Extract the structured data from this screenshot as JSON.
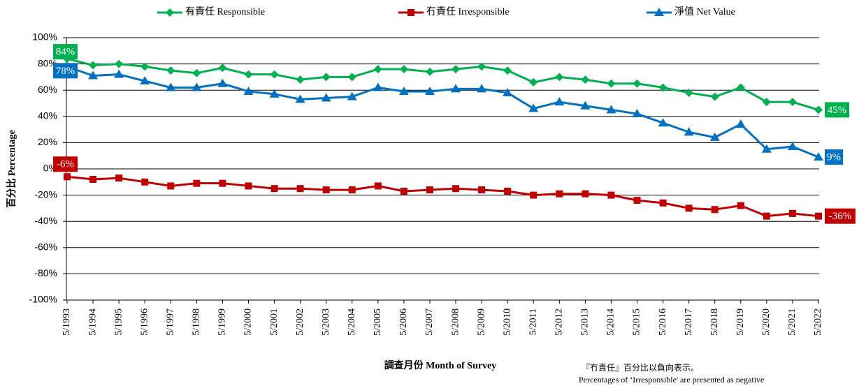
{
  "chart_data": {
    "type": "line",
    "categories": [
      "5/1993",
      "5/1994",
      "5/1995",
      "5/1996",
      "5/1997",
      "5/1998",
      "5/1999",
      "5/2000",
      "5/2001",
      "5/2002",
      "5/2003",
      "5/2004",
      "5/2005",
      "5/2006",
      "5/2007",
      "5/2008",
      "5/2009",
      "5/2010",
      "5/2011",
      "5/2012",
      "5/2013",
      "5/2014",
      "5/2015",
      "5/2016",
      "5/2017",
      "5/2018",
      "5/2019",
      "5/2020",
      "5/2021",
      "5/2022"
    ],
    "series": [
      {
        "name": "有責任 Responsible",
        "color": "#00b050",
        "marker": "diamond",
        "values": [
          84,
          79,
          80,
          78,
          75,
          73,
          77,
          72,
          72,
          68,
          70,
          70,
          76,
          76,
          74,
          76,
          78,
          75,
          66,
          70,
          68,
          65,
          65,
          62,
          58,
          55,
          62,
          51,
          51,
          45
        ],
        "value_labels": [
          "84%",
          null,
          null,
          null,
          null,
          null,
          null,
          null,
          null,
          null,
          null,
          null,
          null,
          null,
          null,
          null,
          null,
          null,
          null,
          null,
          null,
          null,
          null,
          null,
          null,
          null,
          null,
          null,
          null,
          "45%"
        ]
      },
      {
        "name": "冇責任 Irresponsible",
        "color": "#c00000",
        "marker": "square",
        "values": [
          -6,
          -8,
          -7,
          -10,
          -13,
          -11,
          -11,
          -13,
          -15,
          -15,
          -16,
          -16,
          -13,
          -17,
          -16,
          -15,
          -16,
          -17,
          -20,
          -19,
          -19,
          -20,
          -24,
          -26,
          -30,
          -31,
          -28,
          -36,
          -34,
          -36
        ],
        "value_labels": [
          "-6%",
          null,
          null,
          null,
          null,
          null,
          null,
          null,
          null,
          null,
          null,
          null,
          null,
          null,
          null,
          null,
          null,
          null,
          null,
          null,
          null,
          null,
          null,
          null,
          null,
          null,
          null,
          null,
          null,
          "-36%"
        ]
      },
      {
        "name": "淨值 Net Value",
        "color": "#0070c0",
        "marker": "triangle",
        "values": [
          78,
          71,
          72,
          67,
          62,
          62,
          65,
          59,
          57,
          53,
          54,
          55,
          62,
          59,
          59,
          61,
          61,
          58,
          46,
          51,
          48,
          45,
          42,
          35,
          28,
          24,
          34,
          15,
          17,
          9
        ],
        "value_labels": [
          "78%",
          null,
          null,
          null,
          null,
          null,
          null,
          null,
          null,
          null,
          null,
          null,
          null,
          null,
          null,
          null,
          null,
          null,
          null,
          null,
          null,
          null,
          null,
          null,
          null,
          null,
          null,
          null,
          null,
          "9%"
        ]
      }
    ],
    "ylim": [
      -100,
      100
    ],
    "yticks": [
      {
        "value": -100,
        "label": "-100%"
      },
      {
        "value": -80,
        "label": "-80%"
      },
      {
        "value": -60,
        "label": "-60%"
      },
      {
        "value": -40,
        "label": "-40%"
      },
      {
        "value": -20,
        "label": "-20%"
      },
      {
        "value": 0,
        "label": "0%"
      },
      {
        "value": 20,
        "label": "20%"
      },
      {
        "value": 40,
        "label": "40%"
      },
      {
        "value": 60,
        "label": "60%"
      },
      {
        "value": 80,
        "label": "80%"
      },
      {
        "value": 100,
        "label": "100%"
      }
    ],
    "grid": true,
    "legend": "top",
    "ylabel": "百分比 Percentage",
    "xlabel": "調查月份 Month of Survey",
    "notes": [
      "『冇責任』百分比以負向表示。",
      "Percentages of ‘Irresponsible' are presented as negative"
    ]
  }
}
